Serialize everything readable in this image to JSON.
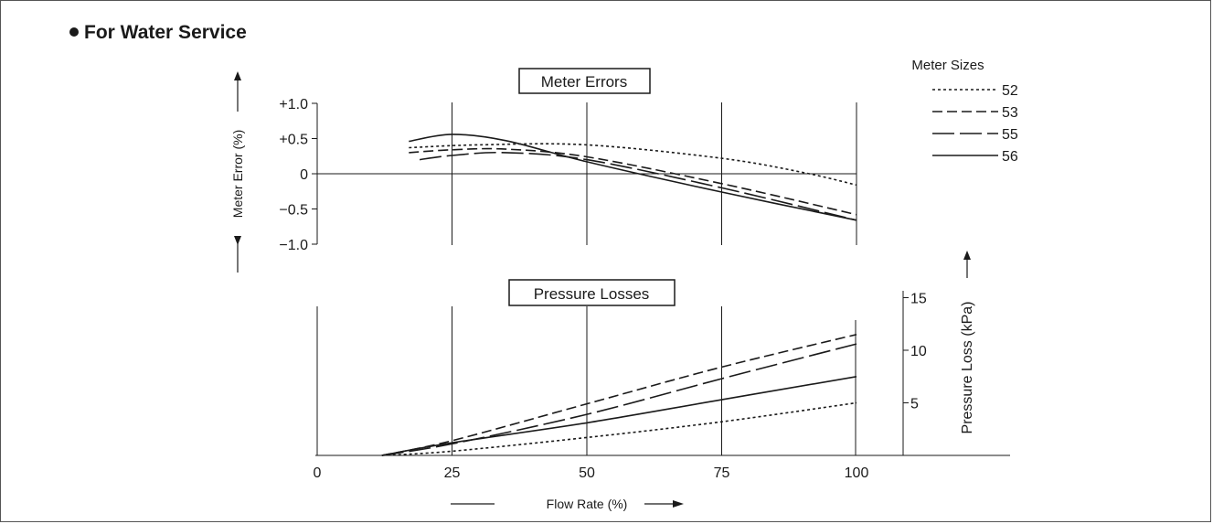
{
  "page": {
    "title": "For Water Service"
  },
  "legend": {
    "title": "Meter Sizes",
    "entries": [
      {
        "label": "52",
        "dash": "dotted"
      },
      {
        "label": "53",
        "dash": "short-dash"
      },
      {
        "label": "55",
        "dash": "long-dash"
      },
      {
        "label": "56",
        "dash": "solid"
      }
    ]
  },
  "chart_data": [
    {
      "type": "line",
      "title": "Meter Errors",
      "xlabel": "",
      "ylabel": "Meter Error (%)",
      "xlim": [
        0,
        100
      ],
      "ylim": [
        -1.0,
        1.0
      ],
      "x_grid": [
        25,
        50,
        75,
        100
      ],
      "y_ticks": [
        {
          "value": 1.0,
          "label": "+1.0"
        },
        {
          "value": 0.5,
          "label": "+0.5"
        },
        {
          "value": 0,
          "label": "0"
        },
        {
          "value": -0.5,
          "label": "−0.5"
        },
        {
          "value": -1.0,
          "label": "−1.0"
        }
      ],
      "series": [
        {
          "name": "52",
          "dash": "dotted",
          "points": [
            [
              17,
              0.37
            ],
            [
              30,
              0.41
            ],
            [
              50,
              0.41
            ],
            [
              75,
              0.22
            ],
            [
              90,
              0.02
            ],
            [
              100,
              -0.16
            ]
          ]
        },
        {
          "name": "53",
          "dash": "short-dash",
          "points": [
            [
              17,
              0.3
            ],
            [
              25,
              0.34
            ],
            [
              35,
              0.35
            ],
            [
              50,
              0.24
            ],
            [
              75,
              -0.14
            ],
            [
              100,
              -0.58
            ]
          ]
        },
        {
          "name": "55",
          "dash": "long-dash",
          "points": [
            [
              19,
              0.2
            ],
            [
              25,
              0.26
            ],
            [
              35,
              0.3
            ],
            [
              50,
              0.2
            ],
            [
              75,
              -0.2
            ],
            [
              100,
              -0.66
            ]
          ]
        },
        {
          "name": "56",
          "dash": "solid",
          "points": [
            [
              17,
              0.46
            ],
            [
              25,
              0.56
            ],
            [
              35,
              0.47
            ],
            [
              50,
              0.17
            ],
            [
              75,
              -0.26
            ],
            [
              100,
              -0.66
            ]
          ]
        }
      ]
    },
    {
      "type": "line",
      "title": "Pressure Losses",
      "xlabel": "Flow Rate (%)",
      "ylabel": "Pressure Loss (kPa)",
      "xlim": [
        0,
        100
      ],
      "ylim": [
        0,
        16
      ],
      "x_ticks": [
        0,
        25,
        50,
        75,
        100
      ],
      "x_grid": [
        0,
        25,
        50,
        75
      ],
      "y_ticks": [
        5,
        10,
        15
      ],
      "series": [
        {
          "name": "52",
          "dash": "dotted",
          "points": [
            [
              12,
              0
            ],
            [
              25,
              0.4
            ],
            [
              50,
              1.7
            ],
            [
              75,
              3.2
            ],
            [
              100,
              5.0
            ]
          ]
        },
        {
          "name": "53",
          "dash": "short-dash",
          "points": [
            [
              12,
              0
            ],
            [
              25,
              1.4
            ],
            [
              50,
              4.9
            ],
            [
              75,
              8.4
            ],
            [
              100,
              11.5
            ]
          ]
        },
        {
          "name": "55",
          "dash": "long-dash",
          "points": [
            [
              12,
              0
            ],
            [
              25,
              1.1
            ],
            [
              50,
              3.9
            ],
            [
              75,
              7.3
            ],
            [
              100,
              10.6
            ]
          ]
        },
        {
          "name": "56",
          "dash": "solid",
          "points": [
            [
              12,
              0
            ],
            [
              25,
              1.2
            ],
            [
              50,
              3.1
            ],
            [
              75,
              5.3
            ],
            [
              100,
              7.5
            ]
          ]
        }
      ]
    }
  ]
}
